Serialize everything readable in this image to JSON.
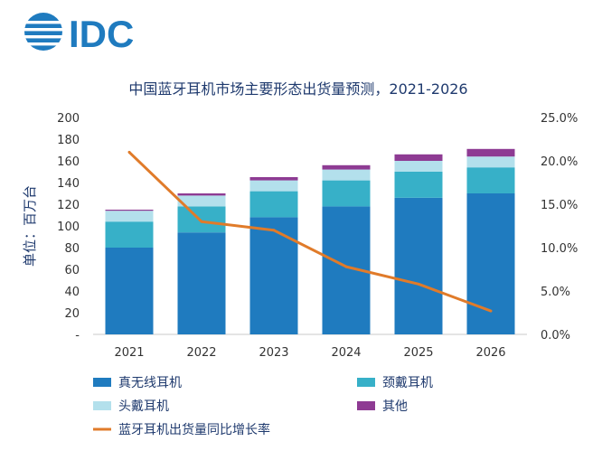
{
  "logo": {
    "text": "IDC"
  },
  "chart_data": {
    "type": "bar",
    "title": "中国蓝牙耳机市场主要形态出货量预测，2021-2026",
    "ylabel": "单位：百万台",
    "categories": [
      "2021",
      "2022",
      "2023",
      "2024",
      "2025",
      "2026"
    ],
    "stacked": true,
    "ylim": [
      0,
      200
    ],
    "y_ticks": [
      "-",
      "20",
      "40",
      "60",
      "80",
      "100",
      "120",
      "140",
      "160",
      "180",
      "200"
    ],
    "y2lim": [
      0,
      25
    ],
    "y2_ticks": [
      "0.0%",
      "5.0%",
      "10.0%",
      "15.0%",
      "20.0%",
      "25.0%"
    ],
    "series": [
      {
        "name": "真无线耳机",
        "type": "bar",
        "color": "#1f7bbf",
        "values": [
          80,
          94,
          108,
          118,
          126,
          130
        ]
      },
      {
        "name": "颈戴耳机",
        "type": "bar",
        "color": "#37b0c8",
        "values": [
          24,
          24,
          24,
          24,
          24,
          24
        ]
      },
      {
        "name": "头戴耳机",
        "type": "bar",
        "color": "#b3e0ec",
        "values": [
          10,
          10,
          10,
          10,
          10,
          10
        ]
      },
      {
        "name": "其他",
        "type": "bar",
        "color": "#8e3b93",
        "values": [
          1,
          2,
          3,
          4,
          6,
          7
        ]
      },
      {
        "name": "蓝牙耳机出货量同比增长率",
        "type": "line",
        "axis": "right",
        "color": "#e07b2a",
        "values": [
          21.0,
          13.0,
          12.0,
          7.8,
          5.8,
          2.7
        ]
      }
    ],
    "grid": false,
    "legend_position": "bottom"
  }
}
